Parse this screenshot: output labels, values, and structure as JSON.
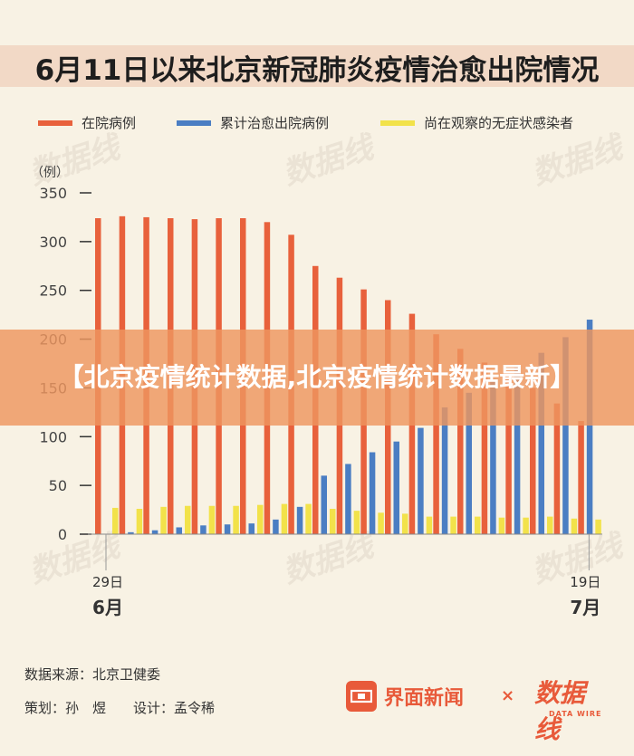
{
  "title": "6月11日以来北京新冠肺炎疫情治愈出院情况",
  "banner_text": "【北京疫情统计数据,北京疫情统计数据最新】",
  "colors": {
    "hospitalized": "#e8613c",
    "recovered": "#4b7ec3",
    "asymptomatic": "#f2e24a"
  },
  "legend": [
    {
      "key": "hospitalized",
      "label": "在院病例"
    },
    {
      "key": "recovered",
      "label": "累计治愈出院病例"
    },
    {
      "key": "asymptomatic",
      "label": "尚在观察的无症状感染者"
    }
  ],
  "chart_data": {
    "type": "bar",
    "ylabel": "（例）",
    "ylim": [
      0,
      350
    ],
    "yticks": [
      0,
      50,
      100,
      150,
      200,
      250,
      300,
      350
    ],
    "x_start_label": "29日",
    "x_start_month": "6月",
    "x_end_label": "19日",
    "x_end_month": "7月",
    "categories": [
      "6/29",
      "6/30",
      "7/1",
      "7/2",
      "7/3",
      "7/4",
      "7/5",
      "7/6",
      "7/7",
      "7/8",
      "7/9",
      "7/10",
      "7/11",
      "7/12",
      "7/13",
      "7/14",
      "7/15",
      "7/16",
      "7/17",
      "7/18",
      "7/19"
    ],
    "series": [
      {
        "name": "在院病例",
        "key": "hospitalized",
        "values": [
          324,
          326,
          325,
          324,
          323,
          324,
          324,
          320,
          307,
          275,
          263,
          251,
          240,
          226,
          205,
          190,
          176,
          164,
          150,
          134,
          116
        ]
      },
      {
        "name": "累计治愈出院病例",
        "key": "recovered",
        "values": [
          0,
          2,
          4,
          7,
          9,
          10,
          11,
          15,
          28,
          60,
          72,
          84,
          95,
          109,
          130,
          145,
          159,
          171,
          186,
          202,
          220
        ]
      },
      {
        "name": "尚在观察的无症状感染者",
        "key": "asymptomatic",
        "values": [
          27,
          26,
          28,
          29,
          29,
          29,
          30,
          31,
          31,
          26,
          24,
          22,
          21,
          18,
          18,
          18,
          17,
          17,
          18,
          16,
          15
        ]
      }
    ]
  },
  "footer": {
    "source": "数据来源：北京卫健委",
    "credits": "策划：孙　煜　　设计：孟令稀"
  },
  "logos": {
    "jiemian": "界面新闻",
    "times": "×",
    "shuju": "数据线",
    "shuju_sub": "DATA WIRE"
  }
}
